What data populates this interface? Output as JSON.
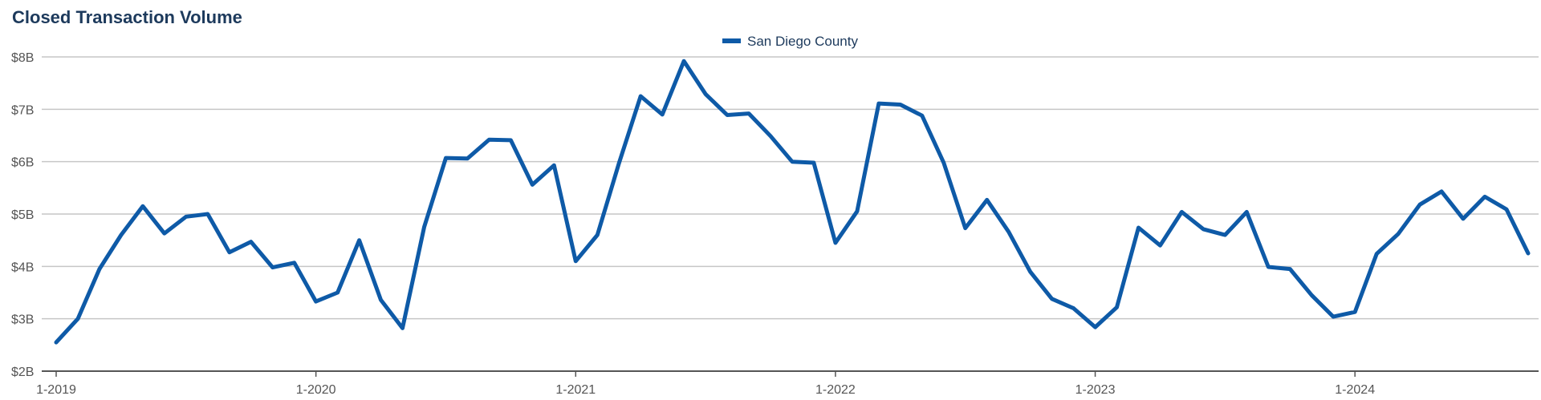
{
  "chart_data": {
    "type": "line",
    "title": "Closed Transaction Volume",
    "xlabel": "",
    "ylabel": "",
    "ylim": [
      2,
      8
    ],
    "y_ticks": [
      {
        "value": 2,
        "label": "$2B"
      },
      {
        "value": 3,
        "label": "$3B"
      },
      {
        "value": 4,
        "label": "$4B"
      },
      {
        "value": 5,
        "label": "$5B"
      },
      {
        "value": 6,
        "label": "$6B"
      },
      {
        "value": 7,
        "label": "$7B"
      },
      {
        "value": 8,
        "label": "$8B"
      }
    ],
    "x_ticks": [
      {
        "index": 0,
        "label": "1-2019"
      },
      {
        "index": 12,
        "label": "1-2020"
      },
      {
        "index": 24,
        "label": "1-2021"
      },
      {
        "index": 36,
        "label": "1-2022"
      },
      {
        "index": 48,
        "label": "1-2023"
      },
      {
        "index": 60,
        "label": "1-2024"
      }
    ],
    "legend_position": "top-center",
    "grid": true,
    "series": [
      {
        "name": "San Diego County",
        "color": "#0e5aa7",
        "values": [
          2.55,
          3.0,
          3.95,
          4.6,
          5.15,
          4.63,
          4.95,
          5.0,
          4.27,
          4.47,
          3.98,
          4.07,
          3.33,
          3.5,
          4.5,
          3.36,
          2.82,
          4.75,
          6.07,
          6.06,
          6.42,
          6.41,
          5.56,
          5.93,
          4.1,
          4.6,
          5.97,
          7.25,
          6.9,
          7.92,
          7.29,
          6.89,
          6.92,
          6.49,
          6.0,
          5.98,
          4.45,
          5.05,
          7.11,
          7.09,
          6.88,
          5.98,
          4.73,
          5.27,
          4.66,
          3.9,
          3.38,
          3.2,
          2.84,
          3.22,
          4.74,
          4.4,
          5.04,
          4.71,
          4.6,
          5.04,
          3.99,
          3.95,
          3.45,
          3.04,
          3.13,
          4.24,
          4.62,
          5.18,
          5.43,
          4.91,
          5.33,
          5.09,
          4.25
        ]
      }
    ]
  }
}
